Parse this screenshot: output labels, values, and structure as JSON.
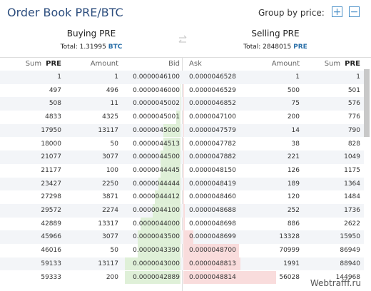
{
  "header": {
    "title": "Order Book PRE/BTC",
    "group_by": "Group by price:"
  },
  "buy": {
    "title": "Buying PRE",
    "total": "Total: 1.31995",
    "total_unit": "BTC"
  },
  "sell": {
    "title": "Selling PRE",
    "total": "Total: 2848015",
    "total_unit": "PRE"
  },
  "table": {
    "columns": [
      [
        "Sum",
        "PRE"
      ],
      [
        "Amount"
      ],
      [
        "Bid"
      ],
      [
        "Ask"
      ],
      [
        "Amount"
      ],
      [
        "Sum",
        "PRE"
      ]
    ],
    "rows": [
      [
        1,
        1,
        "0.0000046100",
        "0.0000046528",
        1,
        1
      ],
      [
        497,
        496,
        "0.0000046000",
        "0.0000046529",
        500,
        501
      ],
      [
        508,
        11,
        "0.0000045002",
        "0.0000046852",
        75,
        576
      ],
      [
        4833,
        4325,
        "0.0000045001",
        "0.0000047100",
        200,
        776
      ],
      [
        17950,
        13117,
        "0.0000045000",
        "0.0000047579",
        14,
        790
      ],
      [
        18000,
        50,
        "0.0000044513",
        "0.0000047782",
        38,
        828
      ],
      [
        21077,
        3077,
        "0.0000044500",
        "0.0000047882",
        221,
        1049
      ],
      [
        21177,
        100,
        "0.0000044445",
        "0.0000048150",
        126,
        1175
      ],
      [
        23427,
        2250,
        "0.0000044444",
        "0.0000048419",
        189,
        1364
      ],
      [
        27298,
        3871,
        "0.0000044412",
        "0.0000048460",
        120,
        1484
      ],
      [
        29572,
        2274,
        "0.0000044100",
        "0.0000048688",
        252,
        1736
      ],
      [
        42889,
        13317,
        "0.0000044000",
        "0.0000048698",
        886,
        2622
      ],
      [
        45966,
        3077,
        "0.0000043500",
        "0.0000048699",
        13328,
        15950
      ],
      [
        46016,
        50,
        "0.0000043390",
        "0.0000048700",
        70999,
        86949
      ],
      [
        59133,
        13117,
        "0.0000043000",
        "0.0000048813",
        1991,
        88940
      ],
      [
        59333,
        200,
        "0.0000042889",
        "0.0000048814",
        56028,
        144968
      ]
    ]
  },
  "watermark": "Webtrafff.ru"
}
